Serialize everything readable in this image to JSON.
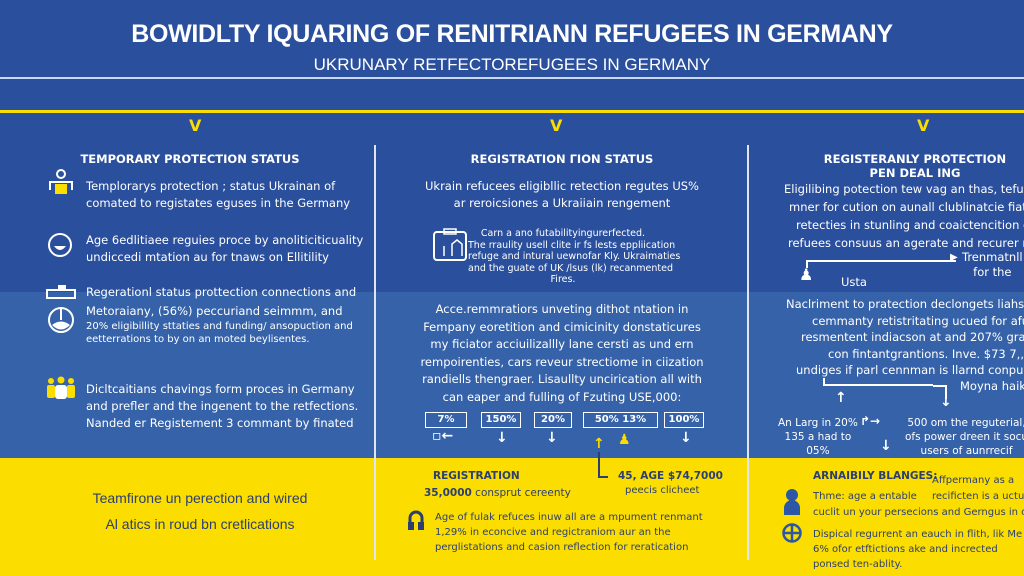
{
  "header": {
    "title": "BOWIDLTY IQUARING OF RENITRIANN REFUGEES IN GERMANY",
    "subtitle": "UKRUNARY RETFECTOREFUGEES IN GERMANY"
  },
  "colors": {
    "blue": "#2a4f9c",
    "band": "#3562a8",
    "yellow": "#fbdd00"
  },
  "col1": {
    "heading": "TEMPORARY PROTECTION STATUS",
    "items": [
      {
        "icon": "worker-icon",
        "lines": [
          "Templorarys protection ; status Ukrainan of",
          "comated to registates eguses in the Germany"
        ]
      },
      {
        "icon": "baby-face-icon",
        "lines": [
          "Age 6edlitiaee reguies proce by anoliticiticuality",
          "undiccedi mtation au for tnaws on Ellitility"
        ]
      },
      {
        "icon": "register-machine-icon",
        "lines": [
          "Regerationl status prottection connections and"
        ]
      },
      {
        "icon": "pie-chart-icon",
        "lines": [
          "Metoraiany, (56%) peccuriand seimmm, and",
          "20% eligibillity sttaties and funding/ ansopuction and",
          "eetterrations to by on an moted beylisentes."
        ]
      },
      {
        "icon": "group-icon",
        "lines": [
          "Dicltcaitians chavings form proces in Germany",
          "and prefler and the ingenent to the retfections.",
          "Nanded er Registement 3 commant by finated"
        ]
      }
    ],
    "footer": [
      "Teamfirone un perection and wired",
      "Al atics in roud bn cretlications"
    ]
  },
  "col2": {
    "heading": "REGISTRATION ΓION STATUS",
    "intro": [
      "Ukrain refucees eligibllic retection regutes US%",
      "ar reroicsiones a Ukraiiain rengement"
    ],
    "clipboard_text": [
      "Carn a ano futabilityingurerfected.",
      "The rraulity usell clite ir fs lests eppliication",
      "refuge and intural uewnofar Kly. Ukraimaties",
      "and the guate of UK /lsus (lk) recanmented",
      "Fires."
    ],
    "paragraph": [
      "Acce.remmratiors unveting dithot ntation in",
      "Fempany eoretition and cimicinity donstaticures",
      "my ficiator acciuilizallly lane cersti as und ern",
      "rempoirenties, cars reveur strectiome in ciization",
      "randiells thengraer. Lisaullty uncirication all with",
      "can eaper and fulling of Fzuting USE,000:"
    ],
    "stats": [
      "7%",
      "150%",
      "20%",
      "50%    13%",
      "100%"
    ],
    "footer": {
      "reg_label": "REGISTRATION",
      "reg_value": "35,0000",
      "reg_text": "consprut cereenty",
      "age_label": "45, AGE $74,7000",
      "age_text": "peecis clicheet",
      "lock_text": [
        "Age of fulak refuces inuw all are a mpument renmant",
        "1,29% in econcive and regictraniom aur an the",
        "perglistations and casion reflection for reratication"
      ]
    }
  },
  "col3": {
    "heading": [
      "REGISTERANLY PROTECTION",
      "PEN DEAL ING"
    ],
    "intro": [
      "Eligilibing potection tew vag an thas, tefuges",
      "mner for cution on aunall clublinatcie fiater-r",
      "retecties in stunling and coaictencition cure",
      "refuees consuus an agerate and recurer rec"
    ],
    "flow_label": [
      "Trenmatnll",
      "for the"
    ],
    "person_label": "Usta",
    "paragraph": [
      "Naclriment to pratection declongets liahs-ana",
      "cemmanty retistritating ucued for afuca",
      "resmentent indiacson at and 207% gratior",
      "con fintantgrantions. Inve. $73 7,,000",
      "undiges if parl cennman is llarnd conpucher"
    ],
    "moyna": "Moyna haiks",
    "left_note": [
      "An Larg in 20%",
      "135 a had to",
      "05%"
    ],
    "right_note": [
      "500 om the reguterial,",
      "ofs power dreen it socu",
      "users of aunrrecif"
    ],
    "footer": {
      "heading": "ARNAIBILY BLANGES:",
      "side1": "Affpermany as a",
      "line1": "Thme: age a entable",
      "side2": "recificten is a uctu",
      "line2": "cuclit un your persecions and Gerngus in cu",
      "line3": "Dispical regurrent an eauch in flith, lik Me",
      "line4": "6% ofor etftictions ake and incrected",
      "line5": "ponsed ten-ablity."
    }
  }
}
